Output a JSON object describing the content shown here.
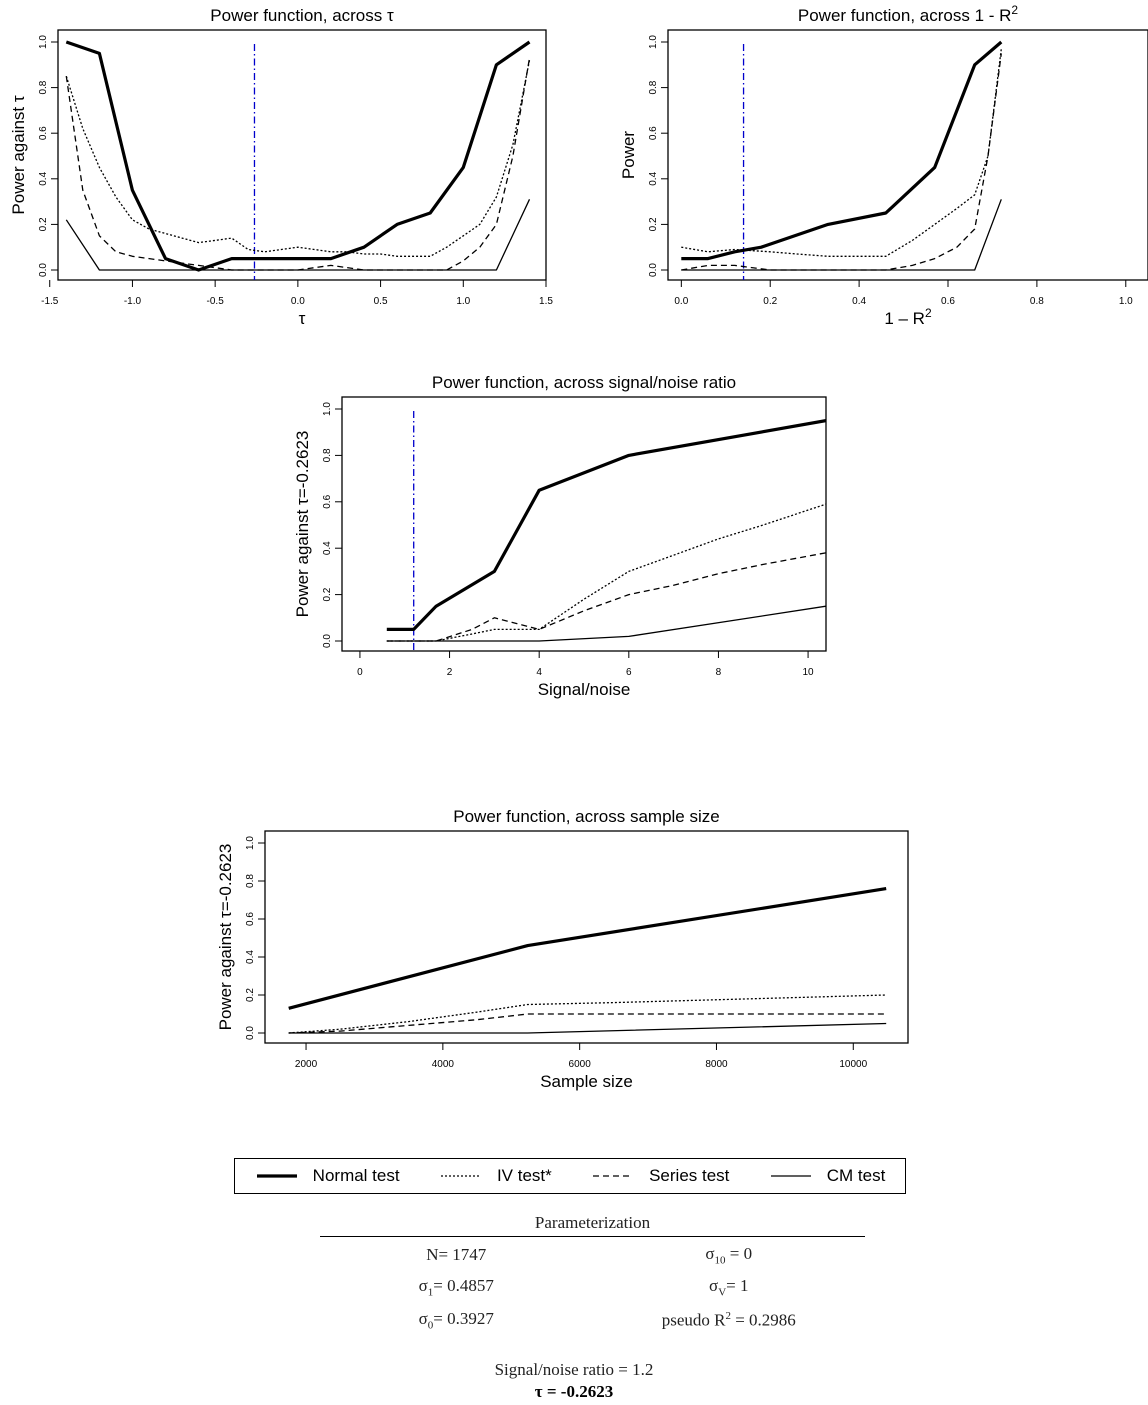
{
  "chart_data": [
    {
      "type": "line",
      "title": "Power function, across τ",
      "xlabel": "τ",
      "ylabel": "Power against τ",
      "xlim": [
        -1.45,
        1.5
      ],
      "ylim": [
        0,
        1
      ],
      "xticks": [
        -1.5,
        -1.0,
        -0.5,
        0.0,
        0.5,
        1.0,
        1.5
      ],
      "xtick_labels": [
        "-1.5",
        "-1.0",
        "-0.5",
        "0.0",
        "0.5",
        "1.0",
        "1.5"
      ],
      "yticks": [
        0.0,
        0.2,
        0.4,
        0.6,
        0.8,
        1.0
      ],
      "ytick_labels": [
        "0.0",
        "0.2",
        "0.4",
        "0.6",
        "0.8",
        "1.0"
      ],
      "vline": -0.2623,
      "series": [
        {
          "name": "Normal test",
          "style": "thick",
          "x": [
            -1.4,
            -1.2,
            -1.0,
            -0.8,
            -0.6,
            -0.4,
            -0.2,
            0.0,
            0.2,
            0.4,
            0.6,
            0.8,
            1.0,
            1.2,
            1.4
          ],
          "y": [
            1.0,
            0.95,
            0.35,
            0.05,
            0.0,
            0.05,
            0.05,
            0.05,
            0.05,
            0.1,
            0.2,
            0.25,
            0.45,
            0.9,
            1.0
          ]
        },
        {
          "name": "IV test*",
          "style": "dotted",
          "x": [
            -1.4,
            -1.3,
            -1.2,
            -1.1,
            -1.0,
            -0.9,
            -0.8,
            -0.7,
            -0.6,
            -0.5,
            -0.4,
            -0.3,
            -0.2,
            -0.1,
            0.0,
            0.1,
            0.2,
            0.3,
            0.4,
            0.5,
            0.6,
            0.7,
            0.8,
            0.9,
            1.0,
            1.1,
            1.2,
            1.3,
            1.4
          ],
          "y": [
            0.85,
            0.62,
            0.45,
            0.32,
            0.22,
            0.18,
            0.16,
            0.14,
            0.12,
            0.13,
            0.14,
            0.09,
            0.08,
            0.09,
            0.1,
            0.09,
            0.08,
            0.08,
            0.07,
            0.07,
            0.06,
            0.06,
            0.06,
            0.1,
            0.15,
            0.2,
            0.32,
            0.55,
            0.92
          ]
        },
        {
          "name": "Series test",
          "style": "dashed",
          "x": [
            -1.4,
            -1.3,
            -1.2,
            -1.1,
            -1.0,
            -0.8,
            -0.6,
            -0.4,
            -0.2,
            0.0,
            0.2,
            0.4,
            0.6,
            0.8,
            0.9,
            1.0,
            1.1,
            1.2,
            1.3,
            1.4
          ],
          "y": [
            0.85,
            0.35,
            0.15,
            0.08,
            0.06,
            0.04,
            0.02,
            0.0,
            0.0,
            0.0,
            0.02,
            0.0,
            0.0,
            0.0,
            0.0,
            0.04,
            0.1,
            0.2,
            0.5,
            0.93
          ]
        },
        {
          "name": "CM test",
          "style": "solid",
          "x": [
            -1.4,
            -1.2,
            -1.0,
            -0.8,
            -0.6,
            -0.4,
            -0.2,
            0.0,
            0.2,
            0.4,
            0.6,
            0.8,
            1.0,
            1.2,
            1.4
          ],
          "y": [
            0.22,
            0.0,
            0.0,
            0.0,
            0.0,
            0.0,
            0.0,
            0.0,
            0.0,
            0.0,
            0.0,
            0.0,
            0.0,
            0.0,
            0.31
          ]
        }
      ]
    },
    {
      "type": "line",
      "title": "Power function, across 1 - R",
      "title_sup": "2",
      "xlabel": "1 – R",
      "xlabel_sup": "2",
      "ylabel": "Power",
      "xlim": [
        -0.03,
        1.05
      ],
      "ylim": [
        0,
        1
      ],
      "xticks": [
        0.0,
        0.2,
        0.4,
        0.6,
        0.8,
        1.0
      ],
      "xtick_labels": [
        "0.0",
        "0.2",
        "0.4",
        "0.6",
        "0.8",
        "1.0"
      ],
      "yticks": [
        0.0,
        0.2,
        0.4,
        0.6,
        0.8,
        1.0
      ],
      "ytick_labels": [
        "0.0",
        "0.2",
        "0.4",
        "0.6",
        "0.8",
        "1.0"
      ],
      "vline": 0.14,
      "series": [
        {
          "name": "Normal test",
          "style": "thick",
          "x": [
            0.0,
            0.06,
            0.12,
            0.18,
            0.33,
            0.46,
            0.57,
            0.66,
            0.72
          ],
          "y": [
            0.05,
            0.05,
            0.08,
            0.1,
            0.2,
            0.25,
            0.45,
            0.9,
            1.0
          ]
        },
        {
          "name": "IV test*",
          "style": "dotted",
          "x": [
            0.0,
            0.06,
            0.12,
            0.2,
            0.26,
            0.33,
            0.46,
            0.52,
            0.57,
            0.62,
            0.66,
            0.69,
            0.72
          ],
          "y": [
            0.1,
            0.08,
            0.09,
            0.08,
            0.07,
            0.06,
            0.06,
            0.13,
            0.2,
            0.27,
            0.33,
            0.5,
            0.97
          ]
        },
        {
          "name": "Series test",
          "style": "dashed",
          "x": [
            0.0,
            0.06,
            0.12,
            0.2,
            0.33,
            0.46,
            0.52,
            0.57,
            0.62,
            0.66,
            0.69,
            0.72
          ],
          "y": [
            0.0,
            0.02,
            0.02,
            0.0,
            0.0,
            0.0,
            0.02,
            0.05,
            0.1,
            0.18,
            0.5,
            0.95
          ]
        },
        {
          "name": "CM test",
          "style": "solid",
          "x": [
            0.0,
            0.2,
            0.46,
            0.66,
            0.72
          ],
          "y": [
            0.0,
            0.0,
            0.0,
            0.0,
            0.31
          ]
        }
      ]
    },
    {
      "type": "line",
      "title": "Power function, across signal/noise ratio",
      "xlabel": "Signal/noise",
      "ylabel": "Power against τ=-0.2623",
      "xlim": [
        -0.4,
        10.4
      ],
      "ylim": [
        0,
        1
      ],
      "xticks": [
        0,
        2,
        4,
        6,
        8,
        10
      ],
      "xtick_labels": [
        "0",
        "2",
        "4",
        "6",
        "8",
        "10"
      ],
      "yticks": [
        0.0,
        0.2,
        0.4,
        0.6,
        0.8,
        1.0
      ],
      "ytick_labels": [
        "0.0",
        "0.2",
        "0.4",
        "0.6",
        "0.8",
        "1.0"
      ],
      "vline": 1.2,
      "series": [
        {
          "name": "Normal test",
          "style": "thick",
          "x": [
            0.6,
            1.2,
            1.7,
            3.0,
            4.0,
            6.0,
            10.4
          ],
          "y": [
            0.05,
            0.05,
            0.15,
            0.3,
            0.65,
            0.8,
            0.95
          ]
        },
        {
          "name": "IV test*",
          "style": "dotted",
          "x": [
            0.6,
            1.2,
            1.7,
            2.5,
            3.0,
            4.0,
            5.0,
            6.0,
            7.0,
            8.0,
            9.0,
            10.4
          ],
          "y": [
            0.0,
            0.0,
            0.0,
            0.03,
            0.05,
            0.05,
            0.18,
            0.3,
            0.37,
            0.44,
            0.5,
            0.59
          ]
        },
        {
          "name": "Series test",
          "style": "dashed",
          "x": [
            0.6,
            1.2,
            1.7,
            2.5,
            3.0,
            4.0,
            5.0,
            6.0,
            7.0,
            8.0,
            9.0,
            10.4
          ],
          "y": [
            0.0,
            0.0,
            0.0,
            0.05,
            0.1,
            0.05,
            0.13,
            0.2,
            0.24,
            0.29,
            0.33,
            0.38
          ]
        },
        {
          "name": "CM test",
          "style": "solid",
          "x": [
            0.6,
            1.2,
            1.7,
            3.0,
            4.0,
            6.0,
            10.4
          ],
          "y": [
            0.0,
            0.0,
            0.0,
            0.0,
            0.0,
            0.02,
            0.15
          ]
        }
      ]
    },
    {
      "type": "line",
      "title": "Power function, across sample size",
      "xlabel": "Sample size",
      "ylabel": "Power against τ=-0.2623",
      "xlim": [
        1400,
        10800
      ],
      "ylim": [
        0,
        1
      ],
      "xticks": [
        2000,
        4000,
        6000,
        8000,
        10000
      ],
      "xtick_labels": [
        "2000",
        "4000",
        "6000",
        "8000",
        "10000"
      ],
      "yticks": [
        0.0,
        0.2,
        0.4,
        0.6,
        0.8,
        1.0
      ],
      "ytick_labels": [
        "0.0",
        "0.2",
        "0.4",
        "0.6",
        "0.8",
        "1.0"
      ],
      "series": [
        {
          "name": "Normal test",
          "style": "thick",
          "x": [
            1747,
            5241,
            10482
          ],
          "y": [
            0.13,
            0.46,
            0.76
          ]
        },
        {
          "name": "IV test*",
          "style": "dotted",
          "x": [
            1747,
            2500,
            3500,
            4500,
            5241,
            6500,
            7500,
            8500,
            9500,
            10482
          ],
          "y": [
            0.0,
            0.02,
            0.06,
            0.11,
            0.15,
            0.16,
            0.17,
            0.18,
            0.19,
            0.2
          ]
        },
        {
          "name": "Series test",
          "style": "dashed",
          "x": [
            1747,
            2500,
            3500,
            4500,
            5241,
            6500,
            7500,
            8500,
            9500,
            10482
          ],
          "y": [
            0.0,
            0.01,
            0.04,
            0.07,
            0.1,
            0.1,
            0.1,
            0.1,
            0.1,
            0.1
          ]
        },
        {
          "name": "CM test",
          "style": "solid",
          "x": [
            1747,
            5241,
            10482
          ],
          "y": [
            0.0,
            0.0,
            0.05
          ]
        }
      ]
    }
  ],
  "legend": {
    "entries": [
      {
        "label": "Normal test",
        "style": "thick"
      },
      {
        "label": "IV test*",
        "style": "dotted"
      },
      {
        "label": "Series test",
        "style": "dashed"
      },
      {
        "label": "CM test",
        "style": "solid"
      }
    ]
  },
  "parameterization": {
    "title": "Parameterization",
    "rows": [
      [
        "N= 1747",
        "σ10 = 0"
      ],
      [
        "σ1= 0.4857",
        "σV= 1"
      ],
      [
        "σ0= 0.3927",
        "pseudo R2 = 0.2986"
      ]
    ]
  },
  "footer": {
    "signal_noise": "Signal/noise ratio = 1.2",
    "tau": "τ = -0.2623"
  },
  "colors": {
    "vline": "#0000cc",
    "lines": "#000000"
  }
}
